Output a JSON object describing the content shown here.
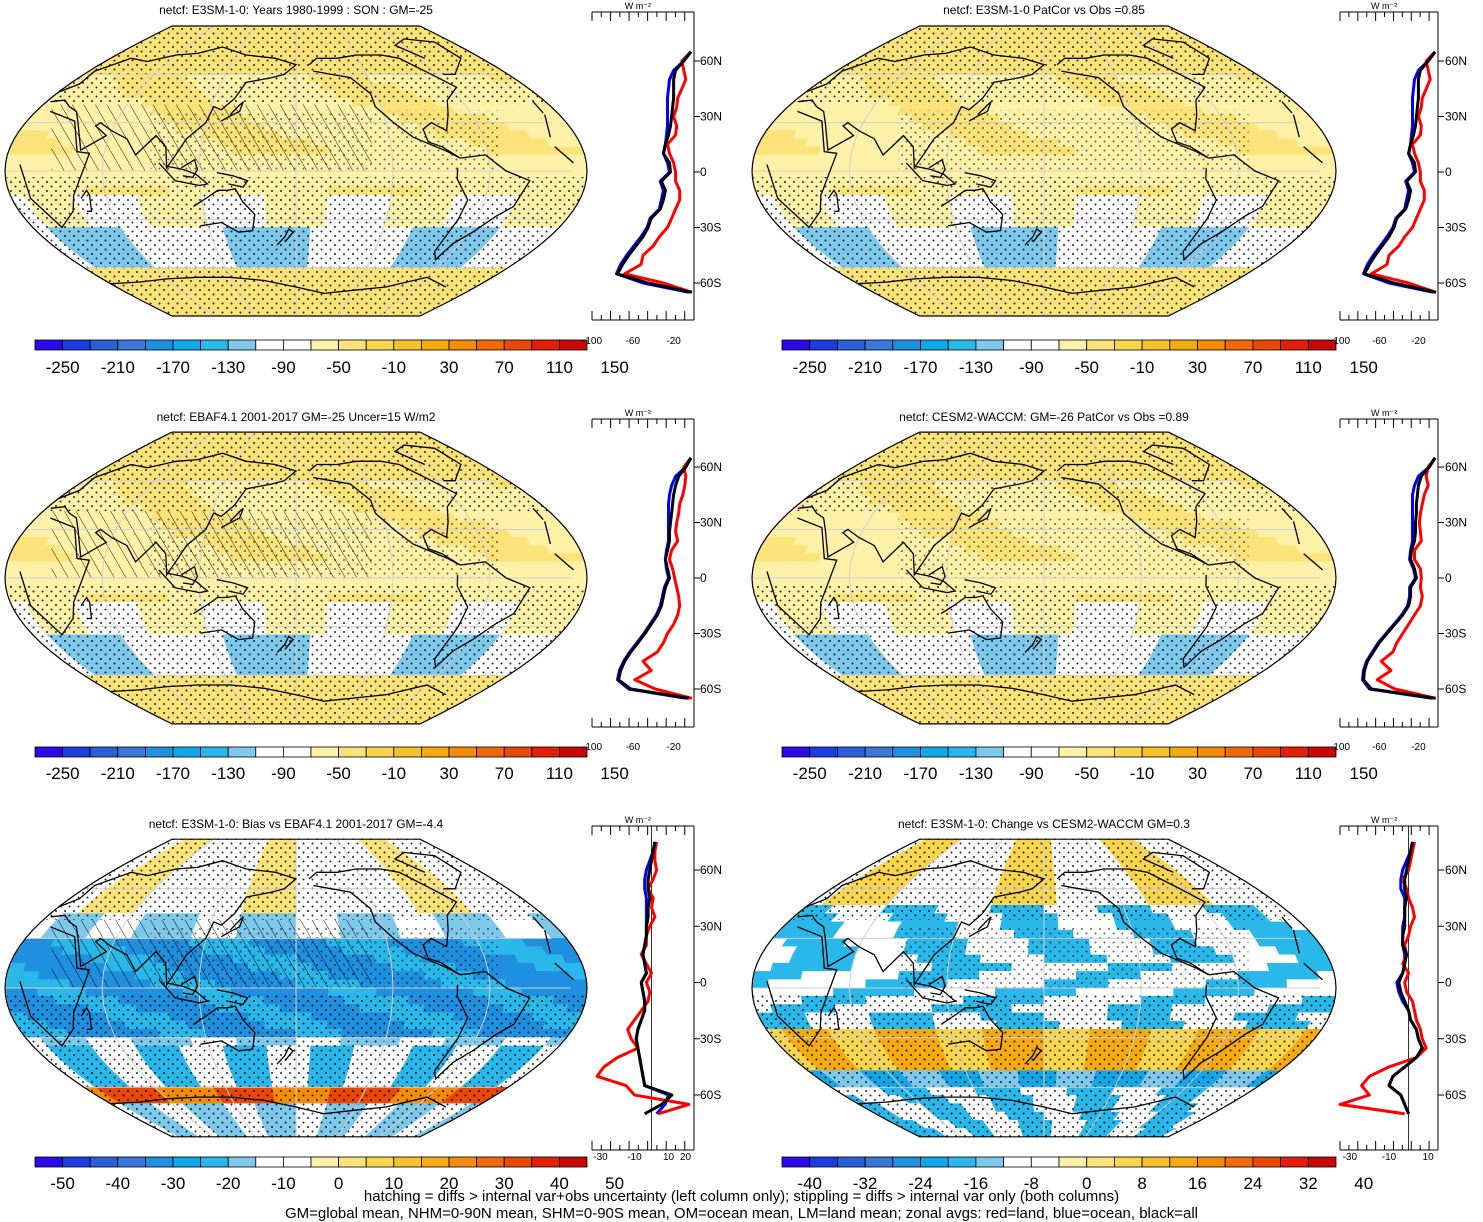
{
  "footnote": {
    "line1": "hatching = diffs > internal var+obs uncertainty (left column only); stippling = diffs > internal var only (both columns)",
    "line2": "GM=global mean, NHM=0-90N mean, SHM=0-90S mean, OM=ocean mean, LM=land mean; zonal avgs: red=land, blue=ocean, black=all"
  },
  "colors": {
    "land_line": "#ff0000",
    "ocean_line": "#0000ff",
    "all_line": "#000000",
    "full_palette": [
      "#2a0ae6",
      "#1b3de0",
      "#2a5fd8",
      "#3a78d8",
      "#1f8fe0",
      "#10a8e8",
      "#2ab7ea",
      "#7ec8ec",
      "#ffffff",
      "#ffffff",
      "#fff2a8",
      "#fbe37a",
      "#f9d44d",
      "#f7c22c",
      "#f6aa12",
      "#f28c0a",
      "#ee6a0a",
      "#e84808",
      "#e02008",
      "#c80808"
    ],
    "diff_palette": [
      "#2a0ae6",
      "#1b3de0",
      "#2a5fd8",
      "#3a78d8",
      "#1f8fe0",
      "#10a8e8",
      "#2ab7ea",
      "#7ec8ec",
      "#ffffff",
      "#ffffff",
      "#fff2a8",
      "#fbe37a",
      "#f9d44d",
      "#f7c22c",
      "#f6aa12",
      "#f28c0a",
      "#ee6a0a",
      "#e84808",
      "#e02008",
      "#c80808"
    ]
  },
  "zonal_lat_labels": [
    "60N",
    "30N",
    "0",
    "30S",
    "60S"
  ],
  "zonal_units": "W m⁻²",
  "chart_data": [
    {
      "type": "heatmap",
      "id": "model-climatology",
      "title": "netcf: E3SM-1-0: Years 1980-1999 : SON : GM=-25",
      "colorbar_labels": [
        "-250",
        "-210",
        "-170",
        "-130",
        "-90",
        "-50",
        "-10",
        "30",
        "70",
        "110",
        "150"
      ],
      "palette": "full",
      "field": "full",
      "zonal": {
        "xticks": [
          "-100",
          "-60",
          "-20"
        ],
        "xlim": [
          -100,
          0
        ],
        "lat": [
          65,
          60,
          55,
          50,
          45,
          40,
          35,
          30,
          25,
          20,
          15,
          10,
          5,
          0,
          -5,
          -10,
          -15,
          -20,
          -25,
          -30,
          -35,
          -40,
          -45,
          -50,
          -55,
          -60,
          -65
        ],
        "all": [
          -3,
          -10,
          -18,
          -20,
          -20,
          -20,
          -21,
          -22,
          -23,
          -25,
          -28,
          -30,
          -24,
          -23,
          -32,
          -28,
          -30,
          -33,
          -42,
          -45,
          -50,
          -57,
          -64,
          -70,
          -75,
          -45,
          -2
        ],
        "ocean": [
          -3,
          -10,
          -20,
          -24,
          -25,
          -26,
          -26,
          -26,
          -26,
          -27,
          -28,
          -30,
          -26,
          -24,
          -33,
          -30,
          -32,
          -34,
          -43,
          -46,
          -52,
          -59,
          -66,
          -72,
          -76,
          -50,
          -5
        ],
        "land": [
          -3,
          -12,
          -10,
          -8,
          -12,
          -16,
          -17,
          -20,
          -17,
          -18,
          -26,
          -24,
          -20,
          -18,
          -18,
          -14,
          -14,
          -18,
          -22,
          -26,
          -34,
          -40,
          -50,
          -52,
          -68,
          -30,
          -2
        ]
      }
    },
    {
      "type": "heatmap",
      "id": "model-vs-obs",
      "title": "netcf: E3SM-1-0 PatCor vs Obs =0.85",
      "colorbar_labels": [
        "-250",
        "-210",
        "-170",
        "-130",
        "-90",
        "-50",
        "-10",
        "30",
        "70",
        "110",
        "150"
      ],
      "palette": "full",
      "field": "full",
      "zonal": {
        "xticks": [
          "-100",
          "-60",
          "-20"
        ],
        "xlim": [
          -100,
          0
        ],
        "lat": [
          65,
          60,
          55,
          50,
          45,
          40,
          35,
          30,
          25,
          20,
          15,
          10,
          5,
          0,
          -5,
          -10,
          -15,
          -20,
          -25,
          -30,
          -35,
          -40,
          -45,
          -50,
          -55,
          -60,
          -65
        ],
        "all": [
          -3,
          -10,
          -18,
          -20,
          -20,
          -20,
          -21,
          -22,
          -23,
          -25,
          -28,
          -30,
          -24,
          -23,
          -32,
          -28,
          -30,
          -33,
          -42,
          -45,
          -50,
          -57,
          -64,
          -70,
          -75,
          -45,
          -2
        ],
        "ocean": [
          -3,
          -10,
          -20,
          -24,
          -25,
          -26,
          -26,
          -26,
          -26,
          -27,
          -28,
          -30,
          -26,
          -24,
          -33,
          -30,
          -32,
          -34,
          -43,
          -46,
          -52,
          -59,
          -66,
          -72,
          -76,
          -50,
          -5
        ],
        "land": [
          -3,
          -12,
          -10,
          -8,
          -12,
          -16,
          -17,
          -20,
          -17,
          -18,
          -26,
          -24,
          -20,
          -18,
          -18,
          -14,
          -14,
          -18,
          -22,
          -26,
          -34,
          -40,
          -50,
          -52,
          -68,
          -30,
          -2
        ]
      }
    },
    {
      "type": "heatmap",
      "id": "obs-climatology",
      "title": "netcf: EBAF4.1 2001-2017 GM=-25 Uncer=15 W/m2",
      "colorbar_labels": [
        "-250",
        "-210",
        "-170",
        "-130",
        "-90",
        "-50",
        "-10",
        "30",
        "70",
        "110",
        "150"
      ],
      "palette": "full",
      "field": "full",
      "zonal": {
        "xticks": [
          "-100",
          "-60",
          "-20"
        ],
        "xlim": [
          -100,
          0
        ],
        "lat": [
          65,
          60,
          55,
          50,
          45,
          40,
          35,
          30,
          25,
          20,
          15,
          10,
          5,
          0,
          -5,
          -10,
          -15,
          -20,
          -25,
          -30,
          -35,
          -40,
          -45,
          -50,
          -55,
          -60,
          -65
        ],
        "all": [
          -3,
          -8,
          -15,
          -18,
          -20,
          -21,
          -22,
          -23,
          -24,
          -24,
          -26,
          -28,
          -26,
          -24,
          -28,
          -30,
          -32,
          -36,
          -42,
          -48,
          -55,
          -62,
          -68,
          -72,
          -74,
          -62,
          -5
        ],
        "ocean": [
          -3,
          -8,
          -18,
          -22,
          -24,
          -25,
          -25,
          -25,
          -25,
          -25,
          -27,
          -28,
          -27,
          -25,
          -29,
          -31,
          -33,
          -37,
          -43,
          -49,
          -56,
          -63,
          -69,
          -73,
          -75,
          -64,
          -8
        ],
        "land": [
          -3,
          -10,
          -8,
          -9,
          -11,
          -14,
          -15,
          -17,
          -18,
          -16,
          -22,
          -24,
          -21,
          -19,
          -17,
          -15,
          -14,
          -16,
          -20,
          -26,
          -30,
          -36,
          -50,
          -42,
          -58,
          -38,
          -2
        ]
      }
    },
    {
      "type": "heatmap",
      "id": "reference-model",
      "title": "netcf: CESM2-WACCM: GM=-26 PatCor vs Obs =0.89",
      "colorbar_labels": [
        "-250",
        "-210",
        "-170",
        "-130",
        "-90",
        "-50",
        "-10",
        "30",
        "70",
        "110",
        "150"
      ],
      "palette": "full",
      "field": "full",
      "zonal": {
        "xticks": [
          "-100",
          "-60",
          "-20"
        ],
        "xlim": [
          -100,
          0
        ],
        "lat": [
          65,
          60,
          55,
          50,
          45,
          40,
          35,
          30,
          25,
          20,
          15,
          10,
          5,
          0,
          -5,
          -10,
          -15,
          -20,
          -25,
          -30,
          -35,
          -40,
          -45,
          -50,
          -55,
          -60,
          -65
        ],
        "all": [
          -3,
          -9,
          -17,
          -20,
          -21,
          -22,
          -22,
          -23,
          -23,
          -24,
          -27,
          -28,
          -24,
          -22,
          -28,
          -28,
          -30,
          -36,
          -44,
          -52,
          -60,
          -66,
          -72,
          -75,
          -76,
          -68,
          -3
        ],
        "ocean": [
          -3,
          -9,
          -20,
          -24,
          -26,
          -26,
          -26,
          -26,
          -26,
          -26,
          -28,
          -29,
          -25,
          -23,
          -29,
          -29,
          -31,
          -37,
          -45,
          -53,
          -61,
          -67,
          -73,
          -76,
          -77,
          -70,
          -6
        ],
        "land": [
          -3,
          -10,
          -12,
          -10,
          -14,
          -16,
          -18,
          -19,
          -18,
          -17,
          -24,
          -24,
          -18,
          -17,
          -18,
          -16,
          -18,
          -24,
          -30,
          -36,
          -42,
          -46,
          -58,
          -48,
          -62,
          -44,
          -2
        ]
      }
    },
    {
      "type": "heatmap",
      "id": "bias",
      "title": "netcf: E3SM-1-0: Bias vs EBAF4.1 2001-2017  GM=-4.4",
      "colorbar_labels": [
        "-50",
        "-40",
        "-30",
        "-20",
        "-10",
        "0",
        "10",
        "20",
        "30",
        "40",
        "50"
      ],
      "palette": "diff",
      "field": "bias",
      "zonal": {
        "xticks": [
          "-30",
          "-10",
          "10",
          "20"
        ],
        "xlim": [
          -35,
          25
        ],
        "lat": [
          75,
          70,
          65,
          60,
          55,
          50,
          45,
          40,
          35,
          30,
          25,
          20,
          15,
          10,
          5,
          0,
          -5,
          -10,
          -15,
          -20,
          -25,
          -30,
          -35,
          -40,
          -45,
          -50,
          -55,
          -60,
          -65,
          -70
        ],
        "all": [
          2,
          1,
          0,
          -1,
          -2,
          -2,
          -1,
          -2,
          -2,
          -3,
          -3,
          -4,
          -5,
          -4,
          -3,
          -6,
          -5,
          -4,
          -4,
          -6,
          -8,
          -9,
          -8,
          -7,
          -6,
          -5,
          -4,
          12,
          6,
          -4
        ],
        "ocean": [
          2,
          1,
          -1,
          -3,
          -4,
          -4,
          -3,
          -3,
          -3,
          -3,
          -3,
          -4,
          -5,
          -4,
          -3,
          -6,
          -5,
          -4,
          -4,
          -6,
          -8,
          -9,
          -8,
          -7,
          -6,
          -5,
          -4,
          10,
          8,
          3
        ],
        "land": [
          3,
          2,
          2,
          3,
          1,
          -2,
          1,
          0,
          2,
          -1,
          -3,
          -3,
          -6,
          -3,
          0,
          -3,
          -1,
          -2,
          -6,
          -10,
          -14,
          -12,
          -8,
          -20,
          -28,
          -32,
          -15,
          -10,
          22,
          4
        ]
      }
    },
    {
      "type": "heatmap",
      "id": "change",
      "title": "netcf: E3SM-1-0: Change vs CESM2-WACCM GM=0.3",
      "colorbar_labels": [
        "-40",
        "-32",
        "-24",
        "-16",
        "-8",
        "0",
        "8",
        "16",
        "24",
        "32",
        "40"
      ],
      "palette": "diff",
      "field": "change",
      "zonal": {
        "xticks": [
          "-30",
          "-10",
          "10"
        ],
        "xlim": [
          -35,
          15
        ],
        "lat": [
          75,
          70,
          65,
          60,
          55,
          50,
          45,
          40,
          35,
          30,
          25,
          20,
          15,
          10,
          5,
          0,
          -5,
          -10,
          -15,
          -20,
          -25,
          -30,
          -35,
          -40,
          -45,
          -50,
          -55,
          -60,
          -65,
          -70
        ],
        "all": [
          2,
          1,
          0,
          -1,
          -2,
          -2,
          -1,
          -2,
          -2,
          -2,
          -3,
          -3,
          -1,
          -2,
          -3,
          -5,
          -4,
          -2,
          0,
          1,
          4,
          5,
          7,
          4,
          -2,
          -8,
          -10,
          -4,
          -2,
          0
        ],
        "ocean": [
          2,
          1,
          -1,
          -3,
          -4,
          -4,
          -2,
          -2,
          -2,
          -3,
          -3,
          -3,
          -2,
          -2,
          -3,
          -6,
          -5,
          -3,
          0,
          1,
          4,
          5,
          7,
          4,
          -2,
          -8,
          -10,
          -4,
          -2,
          0
        ],
        "land": [
          3,
          2,
          1,
          0,
          -3,
          -1,
          0,
          2,
          3,
          1,
          0,
          -2,
          -1,
          -3,
          0,
          -2,
          -1,
          2,
          3,
          4,
          6,
          7,
          9,
          4,
          -10,
          -20,
          -24,
          -20,
          -35,
          -2
        ]
      }
    }
  ]
}
